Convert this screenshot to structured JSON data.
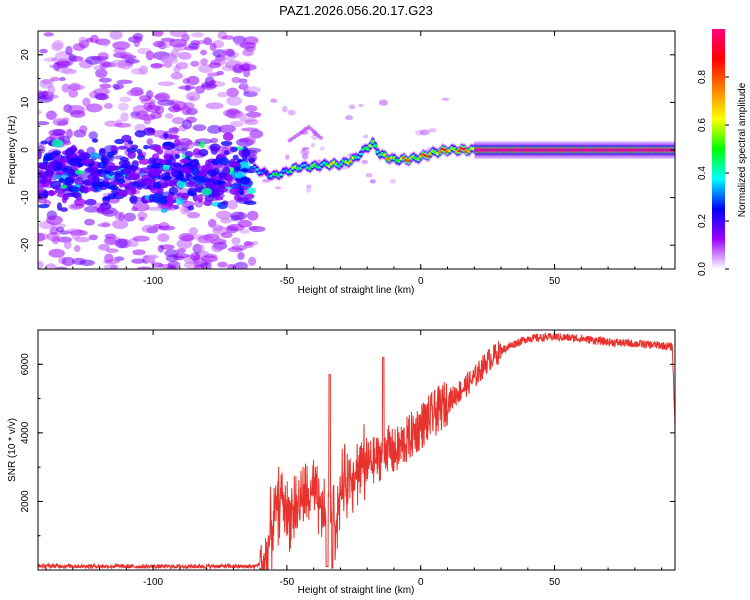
{
  "title": "PAZ1.2026.056.20.17.G23",
  "colorbar": {
    "label": "Normalized spectral amplitude",
    "ticks": [
      "0.0",
      "0.2",
      "0.4",
      "0.6",
      "0.8"
    ],
    "tick_values": [
      0.0,
      0.2,
      0.4,
      0.6,
      0.8
    ],
    "range": [
      0,
      1
    ],
    "colors": [
      "#ffffff",
      "#9b00ff",
      "#0000ff",
      "#00ffff",
      "#00ff00",
      "#ffff00",
      "#ff8000",
      "#ff0000",
      "#ff0080"
    ]
  },
  "chart_data": [
    {
      "type": "heatmap",
      "title": "PAZ1.2026.056.20.17.G23",
      "xlabel": "Height of straight line (km)",
      "ylabel": "Frequency (Hz)",
      "xlim": [
        -143,
        95
      ],
      "ylim": [
        -25,
        25
      ],
      "xticks": [
        -100,
        -50,
        0,
        50
      ],
      "xtick_labels": [
        "-100",
        "-50",
        "0",
        "50"
      ],
      "yticks": [
        -20,
        -10,
        0,
        10,
        20
      ],
      "ytick_labels": [
        "-20",
        "-10",
        "0",
        "10",
        "20"
      ],
      "ridge": {
        "description_free": true,
        "x": [
          -62,
          -55,
          -50,
          -45,
          -40,
          -35,
          -30,
          -25,
          -20,
          -18,
          -15,
          -10,
          -5,
          0,
          5,
          10,
          15,
          20,
          95
        ],
        "y": [
          -4,
          -5.5,
          -4.5,
          -3.5,
          -3.5,
          -3,
          -3,
          -2,
          0.5,
          1.5,
          -1,
          -2,
          -2,
          -1.5,
          -0.5,
          0,
          0,
          0,
          0
        ],
        "amplitude": [
          0.35,
          0.5,
          0.55,
          0.6,
          0.55,
          0.65,
          0.7,
          0.7,
          0.55,
          0.6,
          0.7,
          0.8,
          0.85,
          0.85,
          0.9,
          0.9,
          0.95,
          1.0,
          1.0
        ]
      },
      "noise_region_x": [
        -143,
        -63
      ]
    },
    {
      "type": "line",
      "xlabel": "Height of straight line (km)",
      "ylabel": "SNR (10 * v/v)",
      "xlim": [
        -143,
        95
      ],
      "ylim": [
        0,
        7000
      ],
      "xticks": [
        -100,
        -50,
        0,
        50
      ],
      "xtick_labels": [
        "-100",
        "-50",
        "0",
        "50"
      ],
      "yticks": [
        2000,
        4000,
        6000
      ],
      "ytick_labels": [
        "2000",
        "4000",
        "6000"
      ],
      "series": [
        {
          "name": "SNR",
          "color": "#e8322d",
          "x": [
            -143,
            -100,
            -75,
            -62,
            -58,
            -55,
            -52,
            -50,
            -45,
            -40,
            -36,
            -34,
            -32,
            -30,
            -25,
            -20,
            -15,
            -13,
            -10,
            -5,
            0,
            10,
            20,
            25,
            30,
            35,
            40,
            50,
            60,
            70,
            80,
            90,
            94,
            95
          ],
          "y": [
            120,
            100,
            110,
            100,
            300,
            1500,
            2200,
            1600,
            2000,
            2200,
            1500,
            2500,
            1200,
            2300,
            2900,
            3100,
            3300,
            3600,
            3400,
            3800,
            4200,
            4900,
            5600,
            6100,
            6400,
            6600,
            6750,
            6800,
            6750,
            6650,
            6600,
            6550,
            6500,
            4200
          ]
        }
      ]
    }
  ]
}
